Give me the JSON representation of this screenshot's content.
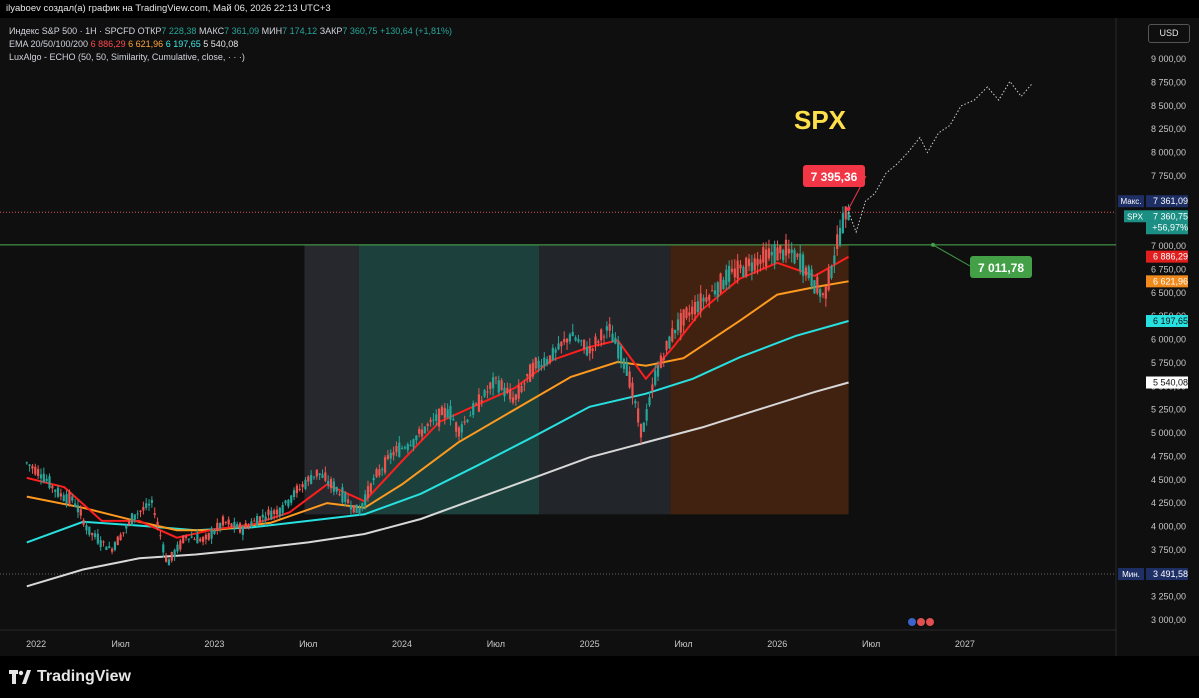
{
  "topbar": {
    "text": "ilyaboev создал(а) график на TradingView.com, Май 06, 2026 22:13 UTC+3"
  },
  "header": {
    "symbol": "Индекс S&P 500 · 1Н · SPCFD",
    "o_label": "ОТКР",
    "o_val": "7 228,38",
    "h_label": "МАКС",
    "h_val": "7 361,09",
    "l_label": "МИН",
    "l_val": "7 174,12",
    "c_label": "ЗАКР",
    "c_val": "7 360,75",
    "change": "+130,64 (+1,81%)",
    "ema_label": "EMA 20/50/100/200",
    "ema20": "6 886,29",
    "ema50": "6 621,96",
    "ema100": "6 197,65",
    "ema200": "5 540,08",
    "luxalgo": "LuxAlgo - ECHO (50, 50, Similarity, Cumulative, close, · · ·)"
  },
  "currency": "USD",
  "footer": {
    "brand": "TradingView"
  },
  "chart_data": {
    "type": "line",
    "title": "SPX",
    "x": [
      "2022",
      "Июл",
      "2023",
      "Июл",
      "2024",
      "Июл",
      "2025",
      "Июл",
      "2026",
      "Июл",
      "2027"
    ],
    "ylim": [
      2900,
      9150
    ],
    "y_ticks": [
      "3 000,00",
      "3 250,00",
      "3 500,00",
      "3 750,00",
      "4 000,00",
      "4 250,00",
      "4 500,00",
      "4 750,00",
      "5 000,00",
      "5 250,00",
      "5 500,00",
      "5 750,00",
      "6 000,00",
      "6 250,00",
      "6 500,00",
      "6 750,00",
      "7 000,00",
      "7 250,00",
      "7 500,00",
      "7 750,00",
      "8 000,00",
      "8 250,00",
      "8 500,00",
      "8 750,00",
      "9 000,00"
    ],
    "price_series": [
      [
        2022.0,
        4680
      ],
      [
        2022.08,
        4560
      ],
      [
        2022.17,
        4350
      ],
      [
        2022.25,
        4280
      ],
      [
        2022.33,
        3950
      ],
      [
        2022.45,
        3750
      ],
      [
        2022.58,
        4130
      ],
      [
        2022.67,
        4250
      ],
      [
        2022.75,
        3600
      ],
      [
        2022.85,
        3900
      ],
      [
        2022.95,
        3850
      ],
      [
        2023.05,
        4050
      ],
      [
        2023.15,
        3970
      ],
      [
        2023.25,
        4100
      ],
      [
        2023.35,
        4180
      ],
      [
        2023.45,
        4400
      ],
      [
        2023.55,
        4580
      ],
      [
        2023.65,
        4400
      ],
      [
        2023.77,
        4150
      ],
      [
        2023.85,
        4500
      ],
      [
        2023.95,
        4780
      ],
      [
        2024.05,
        4900
      ],
      [
        2024.15,
        5100
      ],
      [
        2024.25,
        5250
      ],
      [
        2024.3,
        5020
      ],
      [
        2024.4,
        5300
      ],
      [
        2024.5,
        5560
      ],
      [
        2024.6,
        5350
      ],
      [
        2024.7,
        5700
      ],
      [
        2024.8,
        5820
      ],
      [
        2024.9,
        6050
      ],
      [
        2025.0,
        5880
      ],
      [
        2025.1,
        6120
      ],
      [
        2025.2,
        5700
      ],
      [
        2025.28,
        4980
      ],
      [
        2025.35,
        5600
      ],
      [
        2025.45,
        6100
      ],
      [
        2025.55,
        6330
      ],
      [
        2025.65,
        6500
      ],
      [
        2025.75,
        6700
      ],
      [
        2025.85,
        6800
      ],
      [
        2025.95,
        6900
      ],
      [
        2026.05,
        6950
      ],
      [
        2026.12,
        6850
      ],
      [
        2026.2,
        6600
      ],
      [
        2026.25,
        6450
      ],
      [
        2026.3,
        6850
      ],
      [
        2026.35,
        7250
      ],
      [
        2026.38,
        7360
      ]
    ],
    "series": [
      {
        "name": "EMA 20",
        "color": "#ff1e1e",
        "last": "6 886,29",
        "values": [
          [
            2022.0,
            4520
          ],
          [
            2022.2,
            4420
          ],
          [
            2022.4,
            4060
          ],
          [
            2022.6,
            4060
          ],
          [
            2022.8,
            3880
          ],
          [
            2023.0,
            3970
          ],
          [
            2023.2,
            4020
          ],
          [
            2023.4,
            4150
          ],
          [
            2023.6,
            4450
          ],
          [
            2023.8,
            4270
          ],
          [
            2024.0,
            4700
          ],
          [
            2024.2,
            5120
          ],
          [
            2024.4,
            5300
          ],
          [
            2024.6,
            5480
          ],
          [
            2024.8,
            5780
          ],
          [
            2025.0,
            5920
          ],
          [
            2025.15,
            5990
          ],
          [
            2025.3,
            5580
          ],
          [
            2025.45,
            5930
          ],
          [
            2025.6,
            6320
          ],
          [
            2025.8,
            6650
          ],
          [
            2026.0,
            6820
          ],
          [
            2026.2,
            6680
          ],
          [
            2026.38,
            6886
          ]
        ]
      },
      {
        "name": "EMA 50",
        "color": "#ff9a1e",
        "last": "6 621,96",
        "values": [
          [
            2022.0,
            4320
          ],
          [
            2022.3,
            4200
          ],
          [
            2022.6,
            4050
          ],
          [
            2022.8,
            3960
          ],
          [
            2023.0,
            3960
          ],
          [
            2023.3,
            4040
          ],
          [
            2023.6,
            4250
          ],
          [
            2023.8,
            4200
          ],
          [
            2024.0,
            4450
          ],
          [
            2024.3,
            4900
          ],
          [
            2024.6,
            5250
          ],
          [
            2024.9,
            5600
          ],
          [
            2025.15,
            5760
          ],
          [
            2025.3,
            5720
          ],
          [
            2025.5,
            5800
          ],
          [
            2025.8,
            6200
          ],
          [
            2026.0,
            6480
          ],
          [
            2026.2,
            6560
          ],
          [
            2026.38,
            6622
          ]
        ]
      },
      {
        "name": "EMA 100",
        "color": "#27e0e0",
        "last": "6 197,65",
        "values": [
          [
            2022.0,
            3830
          ],
          [
            2022.3,
            4050
          ],
          [
            2022.6,
            4010
          ],
          [
            2022.9,
            3960
          ],
          [
            2023.2,
            3990
          ],
          [
            2023.5,
            4060
          ],
          [
            2023.8,
            4130
          ],
          [
            2024.1,
            4350
          ],
          [
            2024.4,
            4650
          ],
          [
            2024.7,
            4960
          ],
          [
            2025.0,
            5280
          ],
          [
            2025.3,
            5420
          ],
          [
            2025.55,
            5580
          ],
          [
            2025.8,
            5810
          ],
          [
            2026.1,
            6040
          ],
          [
            2026.38,
            6198
          ]
        ]
      },
      {
        "name": "EMA 200",
        "color": "#d8d8d8",
        "last": "5 540,08",
        "values": [
          [
            2022.0,
            3360
          ],
          [
            2022.3,
            3540
          ],
          [
            2022.6,
            3660
          ],
          [
            2022.9,
            3700
          ],
          [
            2023.2,
            3760
          ],
          [
            2023.5,
            3830
          ],
          [
            2023.8,
            3920
          ],
          [
            2024.1,
            4080
          ],
          [
            2024.4,
            4300
          ],
          [
            2024.7,
            4520
          ],
          [
            2025.0,
            4740
          ],
          [
            2025.3,
            4900
          ],
          [
            2025.6,
            5060
          ],
          [
            2025.9,
            5250
          ],
          [
            2026.2,
            5440
          ],
          [
            2026.38,
            5540
          ]
        ]
      }
    ],
    "projection": [
      [
        2026.38,
        7360
      ],
      [
        2026.42,
        7150
      ],
      [
        2026.47,
        7480
      ],
      [
        2026.52,
        7560
      ],
      [
        2026.58,
        7780
      ],
      [
        2026.64,
        7880
      ],
      [
        2026.7,
        8010
      ],
      [
        2026.76,
        8160
      ],
      [
        2026.8,
        8000
      ],
      [
        2026.86,
        8210
      ],
      [
        2026.92,
        8290
      ],
      [
        2026.98,
        8500
      ],
      [
        2027.05,
        8560
      ],
      [
        2027.12,
        8700
      ],
      [
        2027.18,
        8560
      ],
      [
        2027.24,
        8760
      ],
      [
        2027.3,
        8600
      ],
      [
        2027.36,
        8740
      ]
    ],
    "zones": [
      {
        "from": 2023.48,
        "to": 2023.77,
        "color": "#2a2d33"
      },
      {
        "from": 2023.77,
        "to": 2024.73,
        "color": "#1f4a44"
      },
      {
        "from": 2024.73,
        "to": 2025.43,
        "color": "#26292e"
      },
      {
        "from": 2025.43,
        "to": 2026.38,
        "color": "#4a2612"
      }
    ],
    "zone_bottom": 4130,
    "levels": [
      {
        "price": 7361.09,
        "label": "Макс.",
        "value": "7 361,09",
        "style": "dotted",
        "color": "#e05a5a"
      },
      {
        "price": 7011.78,
        "label": "",
        "value": "",
        "style": "solid",
        "color": "#4caf50"
      },
      {
        "price": 3491.58,
        "label": "Мин.",
        "value": "3 491,58",
        "style": "dotted",
        "color": "#666666"
      }
    ],
    "last_price": {
      "symbol": "SPX",
      "value": "7 360,75",
      "change": "+56,97%"
    },
    "callouts": [
      {
        "text": "7 395,36",
        "color": "#f23645"
      },
      {
        "text": "7 011,78",
        "color": "#43a047"
      }
    ]
  }
}
